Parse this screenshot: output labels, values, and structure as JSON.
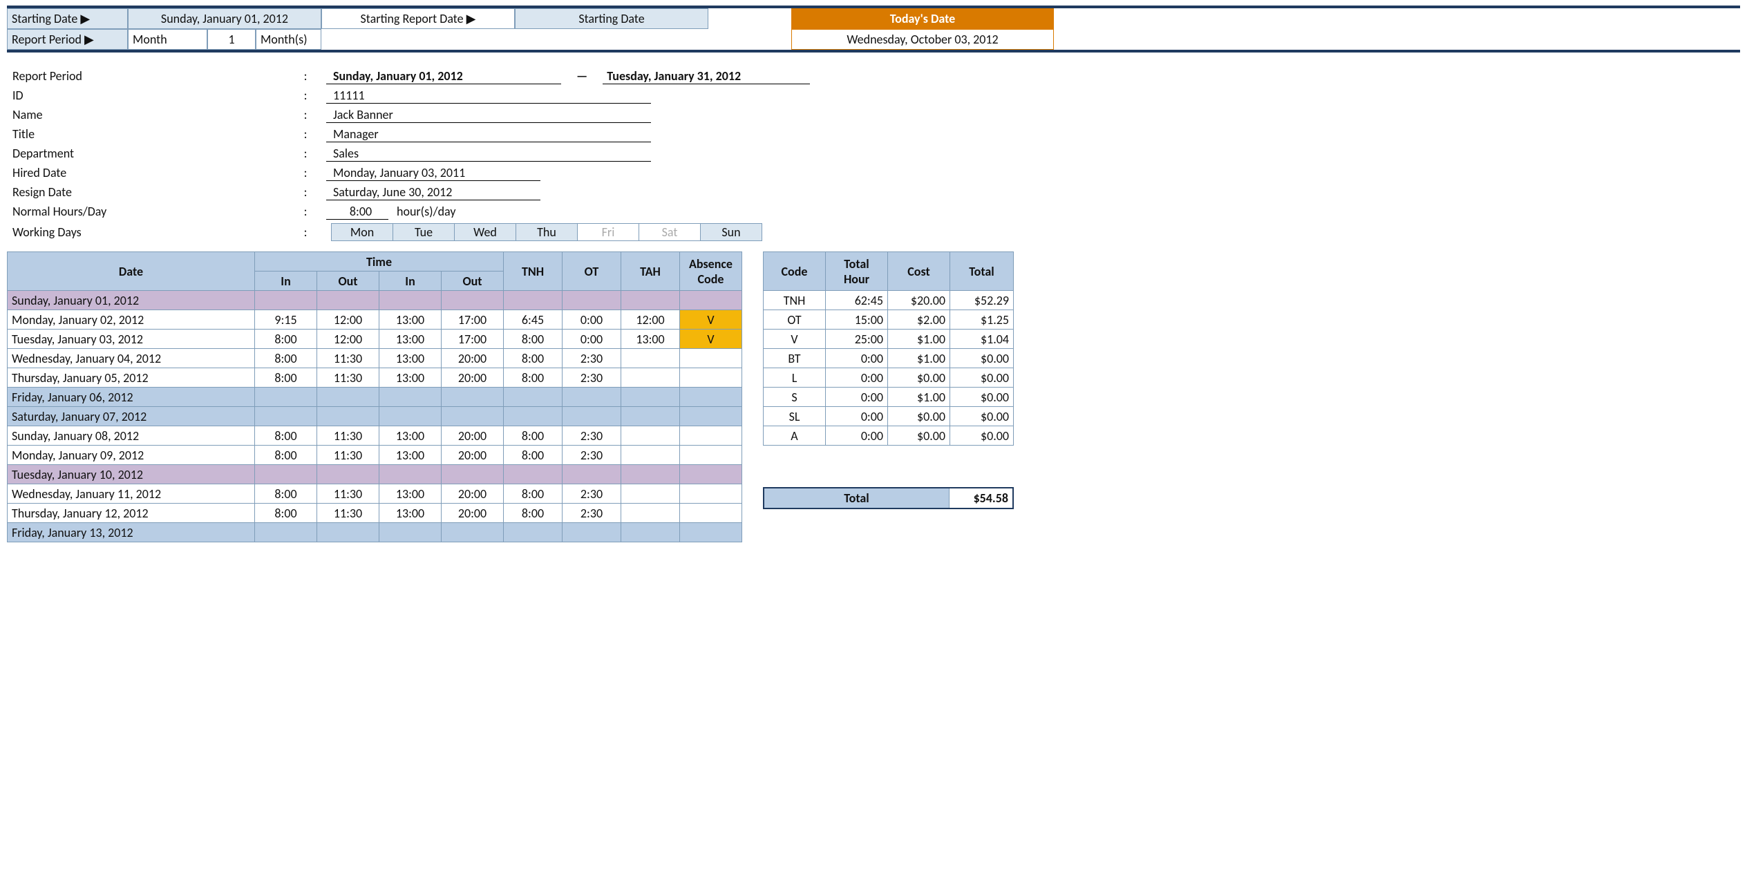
{
  "colors": {
    "border_dark": "#1f3a5f",
    "border_cell": "#7f9db9",
    "header_blue": "#b8cde4",
    "light_blue": "#dae6f0",
    "row_purple": "#c9b8d4",
    "row_blue": "#b8cde4",
    "gold": "#f4b609",
    "orange": "#d97a00"
  },
  "top": {
    "starting_date_label": "Starting Date ▶",
    "starting_date_value": "Sunday, January 01, 2012",
    "starting_report_date_label": "Starting Report Date ▶",
    "starting_report_date_value": "Starting Date",
    "report_period_label": "Report Period ▶",
    "report_period_type": "Month",
    "report_period_num": "1",
    "report_period_unit": "Month(s)",
    "today_label": "Today's Date",
    "today_value": "Wednesday, October 03, 2012"
  },
  "info": {
    "report_period_label": "Report Period",
    "report_period_start": "Sunday, January 01, 2012",
    "report_period_dash": "—",
    "report_period_end": "Tuesday, January 31, 2012",
    "id_label": "ID",
    "id_value": "11111",
    "name_label": "Name",
    "name_value": "Jack Banner",
    "title_label": "Title",
    "title_value": "Manager",
    "department_label": "Department",
    "department_value": "Sales",
    "hired_label": "Hired Date",
    "hired_value": "Monday, January 03, 2011",
    "resign_label": "Resign Date",
    "resign_value": "Saturday, June 30, 2012",
    "normal_hours_label": "Normal Hours/Day",
    "normal_hours_value": "8:00",
    "normal_hours_unit": "hour(s)/day",
    "working_days_label": "Working Days",
    "days": [
      "Mon",
      "Tue",
      "Wed",
      "Thu",
      "Fri",
      "Sat",
      "Sun"
    ],
    "days_off": [
      false,
      false,
      false,
      false,
      true,
      true,
      false
    ]
  },
  "main_table": {
    "headers": {
      "date": "Date",
      "time": "Time",
      "in1": "In",
      "out1": "Out",
      "in2": "In",
      "out2": "Out",
      "tnh": "TNH",
      "ot": "OT",
      "tah": "TAH",
      "absence": "Absence Code"
    },
    "col_widths": {
      "date": 358,
      "time": 90,
      "val": 85,
      "abs": 90
    },
    "rows": [
      {
        "date": "Sunday, January 01, 2012",
        "shade": "purple"
      },
      {
        "date": "Monday, January 02, 2012",
        "in1": "9:15",
        "out1": "12:00",
        "in2": "13:00",
        "out2": "17:00",
        "tnh": "6:45",
        "ot": "0:00",
        "tah": "12:00",
        "abs": "V"
      },
      {
        "date": "Tuesday, January 03, 2012",
        "in1": "8:00",
        "out1": "12:00",
        "in2": "13:00",
        "out2": "17:00",
        "tnh": "8:00",
        "ot": "0:00",
        "tah": "13:00",
        "abs": "V"
      },
      {
        "date": "Wednesday, January 04, 2012",
        "in1": "8:00",
        "out1": "11:30",
        "in2": "13:00",
        "out2": "20:00",
        "tnh": "8:00",
        "ot": "2:30"
      },
      {
        "date": "Thursday, January 05, 2012",
        "in1": "8:00",
        "out1": "11:30",
        "in2": "13:00",
        "out2": "20:00",
        "tnh": "8:00",
        "ot": "2:30"
      },
      {
        "date": "Friday, January 06, 2012",
        "shade": "blue"
      },
      {
        "date": "Saturday, January 07, 2012",
        "shade": "blue"
      },
      {
        "date": "Sunday, January 08, 2012",
        "in1": "8:00",
        "out1": "11:30",
        "in2": "13:00",
        "out2": "20:00",
        "tnh": "8:00",
        "ot": "2:30"
      },
      {
        "date": "Monday, January 09, 2012",
        "in1": "8:00",
        "out1": "11:30",
        "in2": "13:00",
        "out2": "20:00",
        "tnh": "8:00",
        "ot": "2:30"
      },
      {
        "date": "Tuesday, January 10, 2012",
        "shade": "purple"
      },
      {
        "date": "Wednesday, January 11, 2012",
        "in1": "8:00",
        "out1": "11:30",
        "in2": "13:00",
        "out2": "20:00",
        "tnh": "8:00",
        "ot": "2:30"
      },
      {
        "date": "Thursday, January 12, 2012",
        "in1": "8:00",
        "out1": "11:30",
        "in2": "13:00",
        "out2": "20:00",
        "tnh": "8:00",
        "ot": "2:30"
      },
      {
        "date": "Friday, January 13, 2012",
        "shade": "blue"
      }
    ]
  },
  "summary_table": {
    "headers": {
      "code": "Code",
      "hour": "Total Hour",
      "cost": "Cost",
      "total": "Total"
    },
    "rows": [
      {
        "code": "TNH",
        "hour": "62:45",
        "cost": "$20.00",
        "total": "$52.29"
      },
      {
        "code": "OT",
        "hour": "15:00",
        "cost": "$2.00",
        "total": "$1.25"
      },
      {
        "code": "V",
        "hour": "25:00",
        "cost": "$1.00",
        "total": "$1.04"
      },
      {
        "code": "BT",
        "hour": "0:00",
        "cost": "$1.00",
        "total": "$0.00"
      },
      {
        "code": "L",
        "hour": "0:00",
        "cost": "$0.00",
        "total": "$0.00"
      },
      {
        "code": "S",
        "hour": "0:00",
        "cost": "$1.00",
        "total": "$0.00"
      },
      {
        "code": "SL",
        "hour": "0:00",
        "cost": "$0.00",
        "total": "$0.00"
      },
      {
        "code": "A",
        "hour": "0:00",
        "cost": "$0.00",
        "total": "$0.00"
      }
    ]
  },
  "grand_total": {
    "label": "Total",
    "value": "$54.58"
  }
}
